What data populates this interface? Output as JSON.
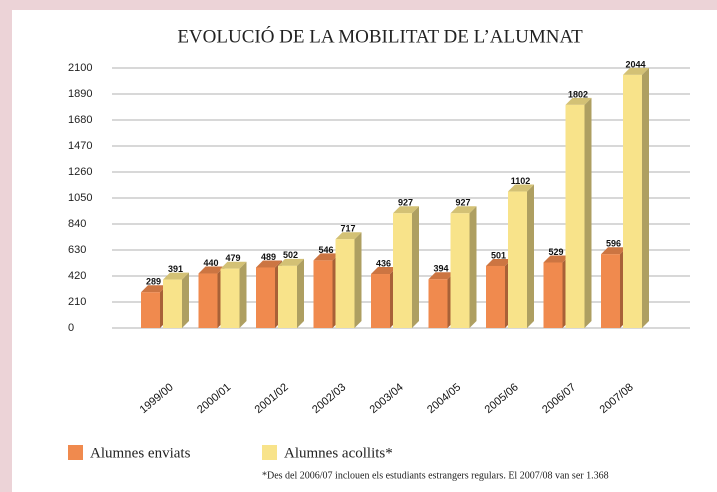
{
  "chart_data": {
    "type": "bar",
    "title": "EVOLUCIÓ DE LA MOBILITAT DE L’ALUMNAT",
    "categories": [
      "1999/00",
      "2000/01",
      "2001/02",
      "2002/03",
      "2003/04",
      "2004/05",
      "2005/06",
      "2006/07",
      "2007/08"
    ],
    "series": [
      {
        "name": "Alumnes enviats",
        "color": "#f08a4e",
        "values": [
          289,
          440,
          489,
          546,
          436,
          394,
          501,
          529,
          596
        ]
      },
      {
        "name": "Alumnes acollits*",
        "color": "#f8e38a",
        "values": [
          391,
          479,
          502,
          717,
          927,
          927,
          1102,
          1802,
          2044
        ]
      }
    ],
    "ylim": [
      0,
      2100
    ],
    "yticks": [
      0,
      210,
      420,
      630,
      840,
      1050,
      1260,
      1470,
      1680,
      1890,
      2100
    ],
    "grid": true,
    "footnote": "*Des del 2006/07 inclouen els estudiants estrangers regulars. El 2007/08 van ser 1.368"
  }
}
